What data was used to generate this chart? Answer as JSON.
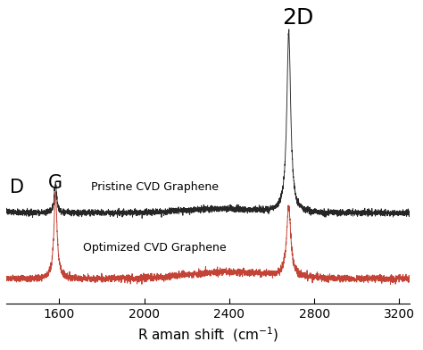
{
  "x_range": [
    1350,
    3250
  ],
  "xticks": [
    1600,
    2000,
    2400,
    2800,
    3200
  ],
  "xlabel": "R aman shift  (cm$^{-1}$)",
  "background_color": "#ffffff",
  "pristine_color": "#1a1a1a",
  "optimized_color": "#c0392b",
  "pristine_label": "Pristine CVD Graphene",
  "optimized_label": "Optimized CVD Graphene",
  "noise_amplitude": 0.008,
  "label_fontsize": 9,
  "tick_fontsize": 10,
  "annotation_fontsize_D": 15,
  "annotation_fontsize_G": 15,
  "annotation_fontsize_2D": 18,
  "pristine_baseline": 0.5,
  "optimized_baseline": 0.1,
  "pristine_G_amp": 0.18,
  "pristine_2D_amp": 1.1,
  "optimized_G_amp": 0.52,
  "optimized_2D_amp": 0.42,
  "ylim_min": -0.05,
  "ylim_max": 1.72
}
